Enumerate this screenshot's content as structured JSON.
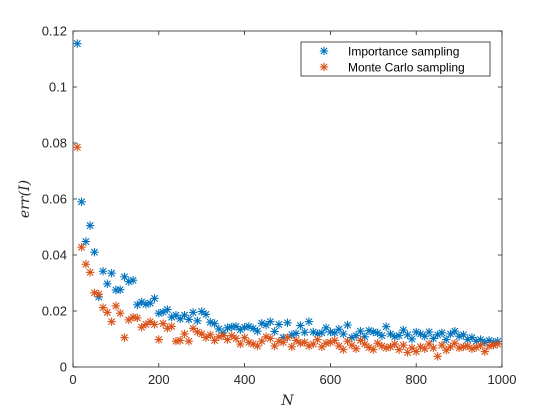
{
  "chart_data": {
    "type": "scatter",
    "title": "",
    "xlabel": "N",
    "ylabel": "err(I)",
    "xlim": [
      0,
      1000
    ],
    "ylim": [
      0,
      0.12
    ],
    "x_ticks": [
      "0",
      "200",
      "400",
      "600",
      "800",
      "1000"
    ],
    "y_ticks": [
      "0",
      "0.02",
      "0.04",
      "0.06",
      "0.08",
      "0.1",
      "0.12"
    ],
    "grid": false,
    "legend_position": "top-right",
    "marker": "asterisk",
    "series": [
      {
        "name": "Importance sampling",
        "color": "#0072bd",
        "x": [
          10,
          20,
          30,
          40,
          50,
          60,
          70,
          80,
          90,
          100,
          110,
          120,
          130,
          140,
          150,
          160,
          170,
          180,
          190,
          200,
          210,
          220,
          230,
          240,
          250,
          260,
          270,
          280,
          290,
          300,
          310,
          320,
          330,
          340,
          350,
          360,
          370,
          380,
          390,
          400,
          410,
          420,
          430,
          440,
          450,
          460,
          470,
          480,
          490,
          500,
          510,
          520,
          530,
          540,
          550,
          560,
          570,
          580,
          590,
          600,
          610,
          620,
          630,
          640,
          650,
          660,
          670,
          680,
          690,
          700,
          710,
          720,
          730,
          740,
          750,
          760,
          770,
          780,
          790,
          800,
          810,
          820,
          830,
          840,
          850,
          860,
          870,
          880,
          890,
          900,
          910,
          920,
          930,
          940,
          950,
          960,
          970,
          980,
          990
        ],
        "y": [
          0.1155,
          0.059,
          0.0448,
          0.0505,
          0.041,
          0.025,
          0.0342,
          0.0297,
          0.0335,
          0.0275,
          0.0276,
          0.0322,
          0.0305,
          0.031,
          0.0222,
          0.0232,
          0.0224,
          0.0228,
          0.0245,
          0.0192,
          0.0196,
          0.0205,
          0.0178,
          0.0185,
          0.0172,
          0.0185,
          0.017,
          0.0195,
          0.0165,
          0.0198,
          0.0188,
          0.016,
          0.0155,
          0.0136,
          0.0122,
          0.014,
          0.0143,
          0.0145,
          0.0133,
          0.0142,
          0.0145,
          0.0138,
          0.0128,
          0.0156,
          0.015,
          0.0162,
          0.0127,
          0.0152,
          0.0105,
          0.0158,
          0.0115,
          0.012,
          0.0148,
          0.0124,
          0.0162,
          0.0125,
          0.0118,
          0.0122,
          0.014,
          0.0125,
          0.0122,
          0.0135,
          0.0118,
          0.015,
          0.0105,
          0.0112,
          0.0128,
          0.0108,
          0.013,
          0.0125,
          0.0122,
          0.0112,
          0.0144,
          0.0118,
          0.0108,
          0.0112,
          0.0132,
          0.0115,
          0.01,
          0.0125,
          0.0118,
          0.011,
          0.0125,
          0.0102,
          0.0115,
          0.0122,
          0.0098,
          0.0118,
          0.0128,
          0.011,
          0.0115,
          0.0098,
          0.0105,
          0.0092,
          0.0098,
          0.0088,
          0.0095,
          0.0088,
          0.0092
        ]
      },
      {
        "name": "Monte Carlo sampling",
        "color": "#d95319",
        "x": [
          10,
          20,
          30,
          40,
          50,
          60,
          70,
          80,
          90,
          100,
          110,
          120,
          130,
          140,
          150,
          160,
          170,
          180,
          190,
          200,
          210,
          220,
          230,
          240,
          250,
          260,
          270,
          280,
          290,
          300,
          310,
          320,
          330,
          340,
          350,
          360,
          370,
          380,
          390,
          400,
          410,
          420,
          430,
          440,
          450,
          460,
          470,
          480,
          490,
          500,
          510,
          520,
          530,
          540,
          550,
          560,
          570,
          580,
          590,
          600,
          610,
          620,
          630,
          640,
          650,
          660,
          670,
          680,
          690,
          700,
          710,
          720,
          730,
          740,
          750,
          760,
          770,
          780,
          790,
          800,
          810,
          820,
          830,
          840,
          850,
          860,
          870,
          880,
          890,
          900,
          910,
          920,
          930,
          940,
          950,
          960,
          970,
          980,
          990
        ],
        "y": [
          0.0785,
          0.0428,
          0.0367,
          0.0338,
          0.0265,
          0.026,
          0.0212,
          0.0195,
          0.0162,
          0.0218,
          0.0192,
          0.0105,
          0.0168,
          0.0178,
          0.0175,
          0.0142,
          0.0152,
          0.0162,
          0.0152,
          0.0098,
          0.0155,
          0.0138,
          0.0145,
          0.0092,
          0.0095,
          0.0118,
          0.0092,
          0.0138,
          0.0125,
          0.0118,
          0.0105,
          0.0115,
          0.0095,
          0.0108,
          0.0112,
          0.0098,
          0.0112,
          0.0102,
          0.0082,
          0.0105,
          0.0088,
          0.0082,
          0.0075,
          0.0092,
          0.0108,
          0.0102,
          0.0075,
          0.0092,
          0.0088,
          0.0105,
          0.0072,
          0.0095,
          0.0085,
          0.0088,
          0.0075,
          0.0082,
          0.0098,
          0.0072,
          0.0085,
          0.0088,
          0.0095,
          0.0075,
          0.0062,
          0.0092,
          0.0078,
          0.0065,
          0.0095,
          0.0082,
          0.007,
          0.0062,
          0.0085,
          0.0075,
          0.0068,
          0.0072,
          0.0082,
          0.0062,
          0.0078,
          0.0052,
          0.0068,
          0.0055,
          0.0072,
          0.0065,
          0.0082,
          0.0068,
          0.0038,
          0.0078,
          0.006,
          0.0072,
          0.0085,
          0.0068,
          0.0072,
          0.0075,
          0.0065,
          0.007,
          0.0078,
          0.0055,
          0.0075,
          0.0078,
          0.0082
        ]
      }
    ]
  }
}
